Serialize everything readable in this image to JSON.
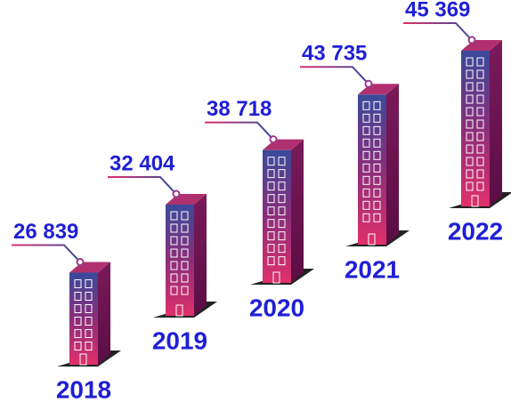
{
  "chart_data": {
    "type": "building",
    "categories": [
      "2018",
      "2019",
      "2020",
      "2021",
      "2022"
    ],
    "values": [
      26839,
      32404,
      38718,
      43735,
      45369
    ],
    "value_labels": [
      "26 839",
      "32 404",
      "38 718",
      "43 735",
      "45 369"
    ],
    "color": "#1f1fd6"
  }
}
